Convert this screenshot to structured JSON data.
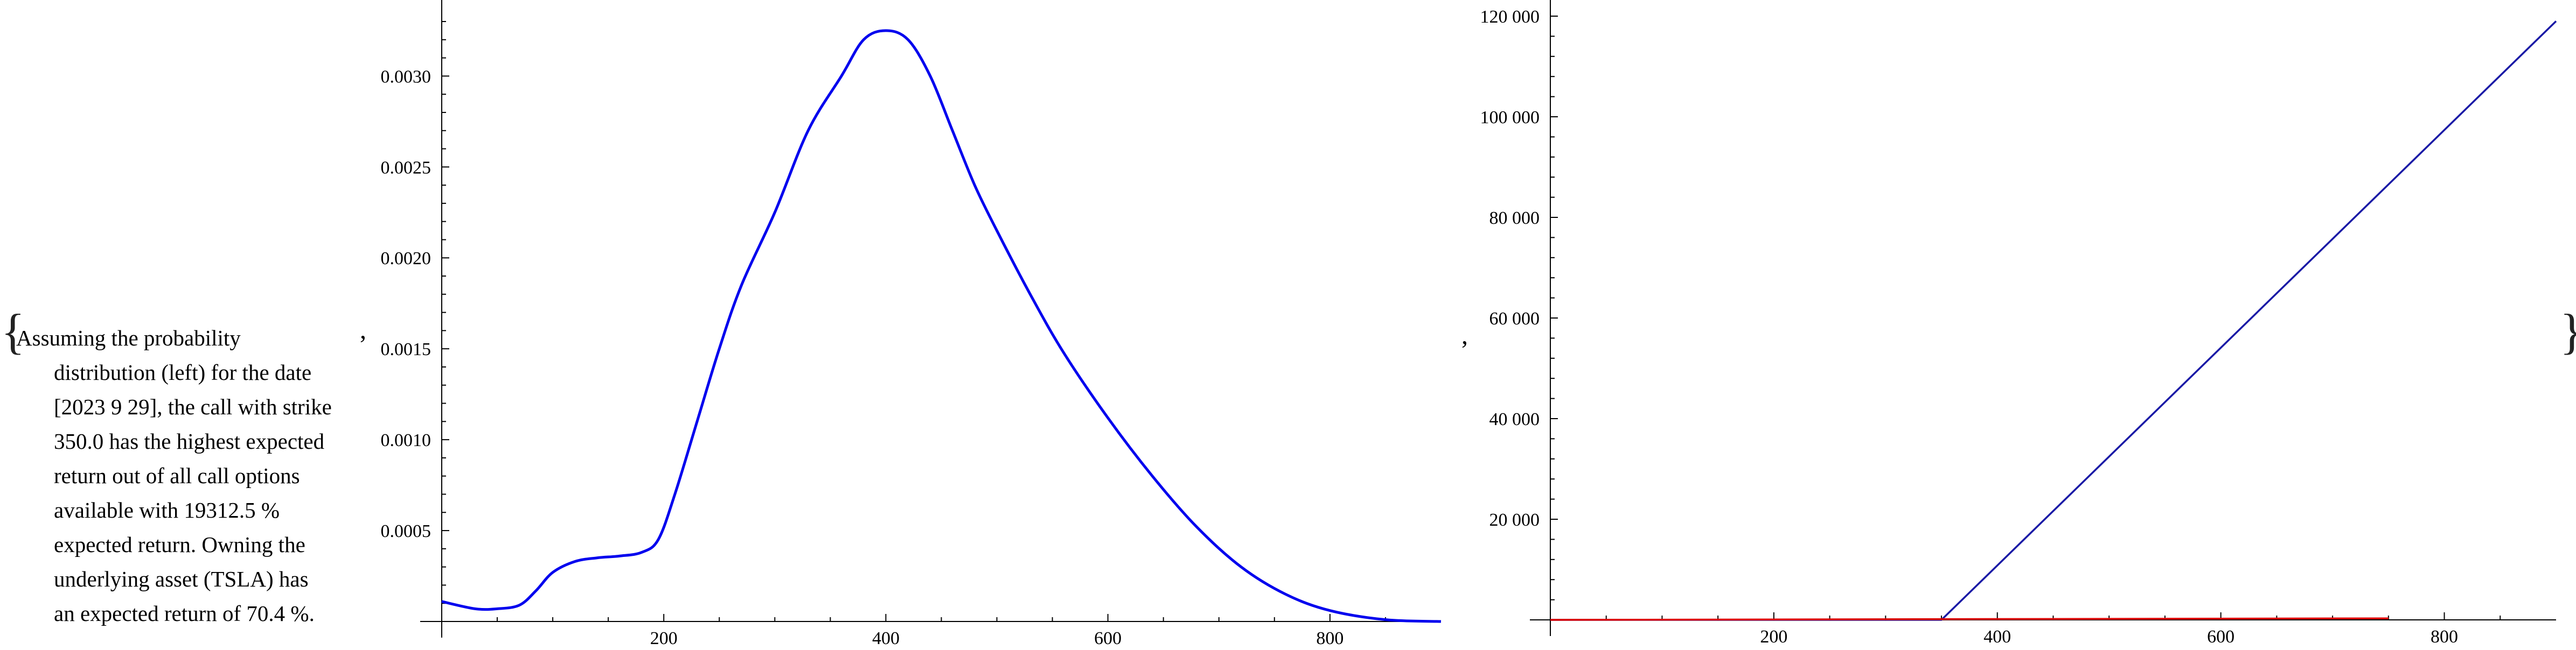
{
  "expression": {
    "open_brace": "{",
    "close_brace": "}",
    "separator_1": ",",
    "separator_2": ",",
    "description_lines": [
      "Assuming the probability",
      "distribution (left) for the date",
      "[2023 9 29], the call with strike",
      "350.0 has the highest expected",
      "return out of all call options",
      "available with 19312.5 %",
      "expected return. Owning the",
      "underlying asset (TSLA) has",
      "an expected return of 70.4 %."
    ]
  },
  "chart_data": [
    {
      "type": "line",
      "title": "",
      "xlabel": "",
      "ylabel": "",
      "xlim": [
        0,
        900
      ],
      "ylim": [
        0,
        0.0033
      ],
      "x_ticks": [
        200,
        400,
        600,
        800
      ],
      "x_tick_labels": [
        "200",
        "400",
        "600",
        "800"
      ],
      "y_ticks": [
        0.0005,
        0.001,
        0.0015,
        0.002,
        0.0025,
        0.003
      ],
      "y_tick_labels": [
        "0.0005",
        "0.0010",
        "0.0015",
        "0.0020",
        "0.0025",
        "0.0030"
      ],
      "grid": false,
      "series": [
        {
          "color": "#0000ee",
          "points": [
            [
              0,
              0.00011
            ],
            [
              30,
              7e-05
            ],
            [
              50,
              7e-05
            ],
            [
              70,
              9e-05
            ],
            [
              85,
              0.00017
            ],
            [
              100,
              0.00027
            ],
            [
              120,
              0.00033
            ],
            [
              140,
              0.00035
            ],
            [
              160,
              0.00036
            ],
            [
              180,
              0.00038
            ],
            [
              195,
              0.00045
            ],
            [
              210,
              0.0007
            ],
            [
              230,
              0.0011
            ],
            [
              250,
              0.0015
            ],
            [
              270,
              0.00185
            ],
            [
              300,
              0.00225
            ],
            [
              330,
              0.0027
            ],
            [
              360,
              0.003
            ],
            [
              380,
              0.0032
            ],
            [
              400,
              0.00325
            ],
            [
              420,
              0.0032
            ],
            [
              440,
              0.003
            ],
            [
              460,
              0.0027
            ],
            [
              480,
              0.0024
            ],
            [
              500,
              0.00215
            ],
            [
              530,
              0.0018
            ],
            [
              560,
              0.00148
            ],
            [
              600,
              0.00112
            ],
            [
              640,
              0.0008
            ],
            [
              680,
              0.00052
            ],
            [
              720,
              0.0003
            ],
            [
              760,
              0.00015
            ],
            [
              800,
              6e-05
            ],
            [
              850,
              1e-05
            ],
            [
              900,
              0.0
            ]
          ]
        }
      ]
    },
    {
      "type": "line",
      "title": "",
      "xlabel": "",
      "ylabel": "",
      "xlim": [
        0,
        900
      ],
      "ylim": [
        0,
        120000
      ],
      "x_ticks": [
        200,
        400,
        600,
        800
      ],
      "x_tick_labels": [
        "200",
        "400",
        "600",
        "800"
      ],
      "y_ticks": [
        20000,
        40000,
        60000,
        80000,
        100000,
        120000
      ],
      "y_tick_labels": [
        "20 000",
        "40 000",
        "60 000",
        "80 000",
        "100 000",
        "120 000"
      ],
      "grid": false,
      "series": [
        {
          "color": "#1a1aa6",
          "points": [
            [
              0,
              0
            ],
            [
              350,
              0
            ],
            [
              900,
              119000
            ]
          ]
        },
        {
          "color": "#dd0000",
          "points": [
            [
              0,
              0
            ],
            [
              750,
              300
            ]
          ]
        }
      ]
    }
  ]
}
